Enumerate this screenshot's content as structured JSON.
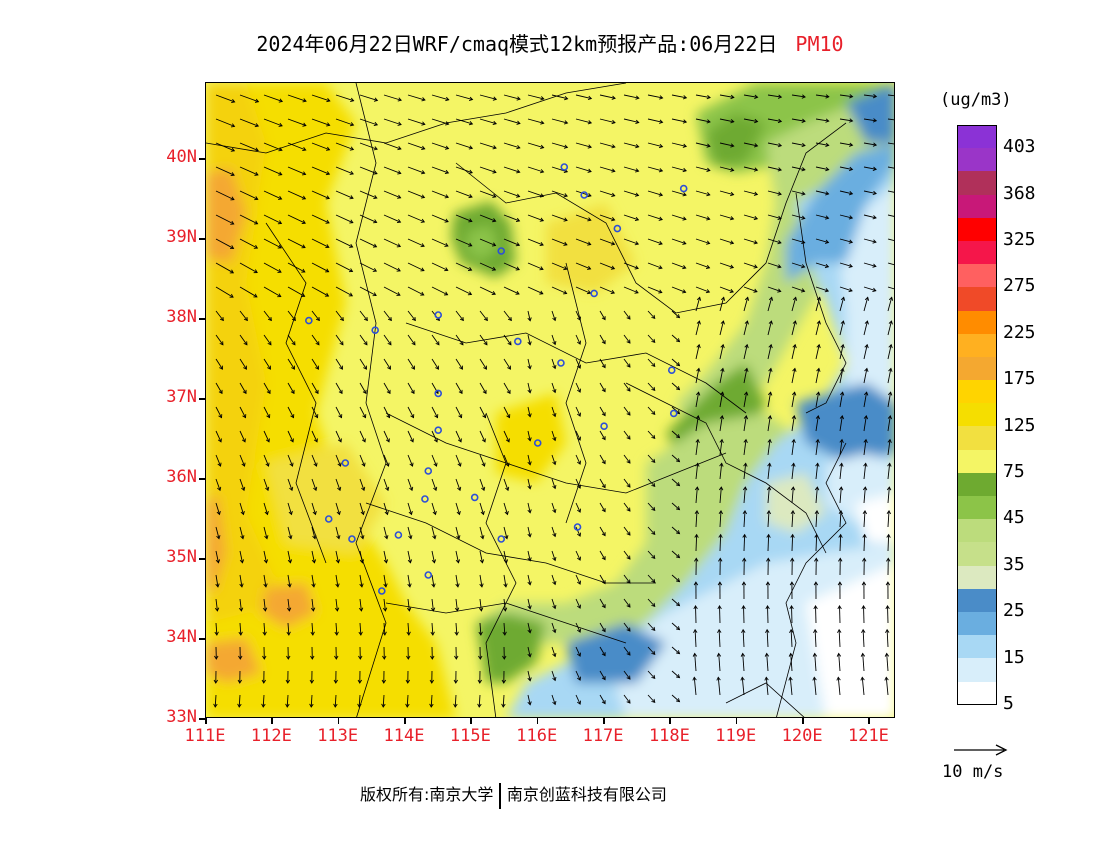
{
  "title": {
    "text": "2024年06月22日WRF/cmaq模式12km预报产品:06月22日",
    "pollutant": "PM10"
  },
  "colors": {
    "axis_label": "#e8202a",
    "city_marker": "#2d4fd6",
    "wind_arrow": "#000000",
    "boundary": "#000000"
  },
  "axes": {
    "lat_labels": [
      "40N",
      "39N",
      "38N",
      "37N",
      "36N",
      "35N",
      "34N",
      "33N"
    ],
    "lat_values": [
      40,
      39,
      38,
      37,
      36,
      35,
      34,
      33
    ],
    "lon_labels": [
      "111E",
      "112E",
      "113E",
      "114E",
      "115E",
      "116E",
      "117E",
      "118E",
      "119E",
      "120E",
      "121E"
    ],
    "lon_values": [
      111,
      112,
      113,
      114,
      115,
      116,
      117,
      118,
      119,
      120,
      121
    ],
    "lon_range": [
      111,
      121.4
    ],
    "lat_range": [
      33,
      40.95
    ]
  },
  "legend": {
    "unit": "(ug/m3)",
    "labels": [
      "403",
      "368",
      "325",
      "275",
      "225",
      "175",
      "125",
      "75",
      "45",
      "35",
      "25",
      "15",
      "5"
    ],
    "bins_top_to_bottom": [
      "#8b32d6",
      "#9a35c8",
      "#b0305a",
      "#c81878",
      "#ff0000",
      "#f5164a",
      "#ff6060",
      "#f04a28",
      "#ff8c00",
      "#ffb020",
      "#f4a830",
      "#ffd400",
      "#f5de00",
      "#f2e040",
      "#f4f565",
      "#6eaa30",
      "#8cc448",
      "#bcdc7c",
      "#c6e08a",
      "#dce9c0",
      "#4a8cc8",
      "#6aaee0",
      "#a8d8f4",
      "#d8eefa",
      "#ffffff"
    ],
    "reference_wind": "10 m/s"
  },
  "cities": [
    {
      "lon": 116.4,
      "lat": 39.9
    },
    {
      "lon": 116.7,
      "lat": 39.55
    },
    {
      "lon": 117.2,
      "lat": 39.13
    },
    {
      "lon": 118.2,
      "lat": 39.63
    },
    {
      "lon": 115.45,
      "lat": 38.85
    },
    {
      "lon": 116.85,
      "lat": 38.32
    },
    {
      "lon": 114.5,
      "lat": 38.05
    },
    {
      "lon": 113.55,
      "lat": 37.86
    },
    {
      "lon": 112.55,
      "lat": 37.98
    },
    {
      "lon": 115.7,
      "lat": 37.72
    },
    {
      "lon": 116.35,
      "lat": 37.45
    },
    {
      "lon": 118.02,
      "lat": 37.36
    },
    {
      "lon": 118.05,
      "lat": 36.82
    },
    {
      "lon": 117.0,
      "lat": 36.66
    },
    {
      "lon": 114.5,
      "lat": 37.07
    },
    {
      "lon": 114.5,
      "lat": 36.61
    },
    {
      "lon": 116.0,
      "lat": 36.45
    },
    {
      "lon": 113.1,
      "lat": 36.2
    },
    {
      "lon": 114.35,
      "lat": 36.1
    },
    {
      "lon": 114.3,
      "lat": 35.75
    },
    {
      "lon": 115.05,
      "lat": 35.77
    },
    {
      "lon": 112.85,
      "lat": 35.5
    },
    {
      "lon": 113.2,
      "lat": 35.25
    },
    {
      "lon": 113.9,
      "lat": 35.3
    },
    {
      "lon": 115.45,
      "lat": 35.25
    },
    {
      "lon": 116.6,
      "lat": 35.4
    },
    {
      "lon": 114.35,
      "lat": 34.8
    },
    {
      "lon": 113.65,
      "lat": 34.6
    }
  ],
  "copyright": {
    "prefix": "版权所有:",
    "org1": "南京大学",
    "org2": "南京创蓝科技有限公司"
  }
}
